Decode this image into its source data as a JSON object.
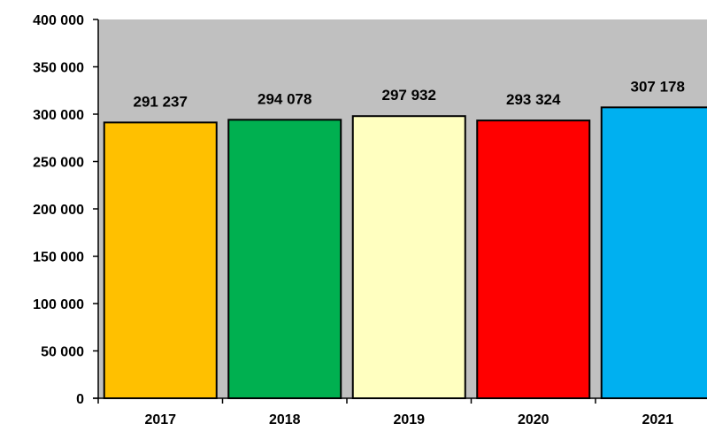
{
  "chart_data": {
    "type": "bar",
    "title": "",
    "xlabel": "",
    "ylabel": "",
    "categories": [
      "2017",
      "2018",
      "2019",
      "2020",
      "2021"
    ],
    "values": [
      291237,
      294078,
      297932,
      293324,
      307178
    ],
    "value_labels": [
      "291 237",
      "294 078",
      "297 932",
      "293 324",
      "307 178"
    ],
    "bar_colors": [
      "#FFC000",
      "#00B050",
      "#FFFFC0",
      "#FF0000",
      "#00B0F0"
    ],
    "ylim": [
      0,
      400000
    ],
    "yticks": [
      0,
      50000,
      100000,
      150000,
      200000,
      250000,
      300000,
      350000,
      400000
    ],
    "ytick_labels": [
      "0",
      "50 000",
      "100 000",
      "150 000",
      "200 000",
      "250 000",
      "300 000",
      "350 000",
      "400 000"
    ],
    "plot_background": "#C0C0C0",
    "grid": false,
    "legend": "none"
  }
}
